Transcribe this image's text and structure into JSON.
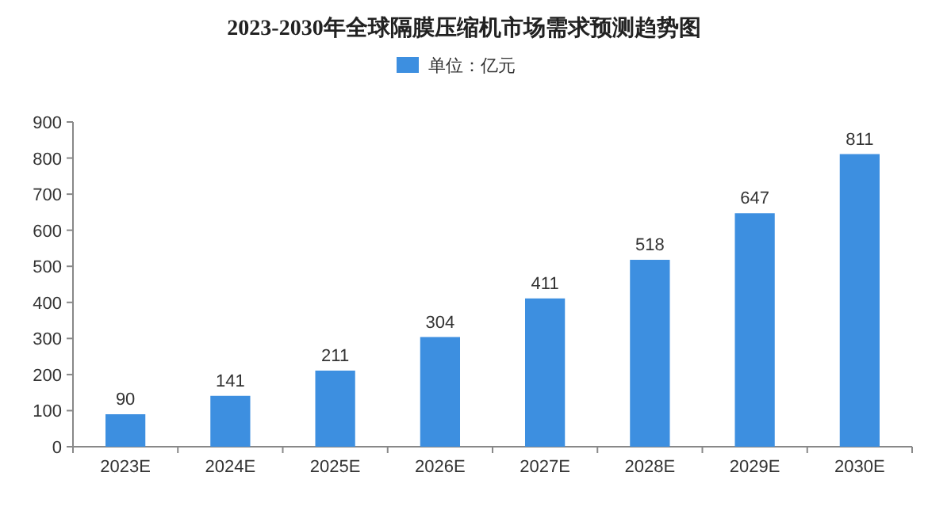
{
  "chart_data": {
    "type": "bar",
    "title": "2023-2030年全球隔膜压缩机市场需求预测趋势图",
    "categories": [
      "2023E",
      "2024E",
      "2025E",
      "2026E",
      "2027E",
      "2028E",
      "2029E",
      "2030E"
    ],
    "series": [
      {
        "name": "单位：亿元",
        "color": "#3d8fe0",
        "values": [
          90,
          141,
          211,
          304,
          411,
          518,
          647,
          811
        ]
      }
    ],
    "ylim": [
      0,
      900
    ],
    "yticks": [
      0,
      100,
      200,
      300,
      400,
      500,
      600,
      700,
      800,
      900
    ],
    "data_labels": true,
    "legend": "top",
    "grid": false
  }
}
